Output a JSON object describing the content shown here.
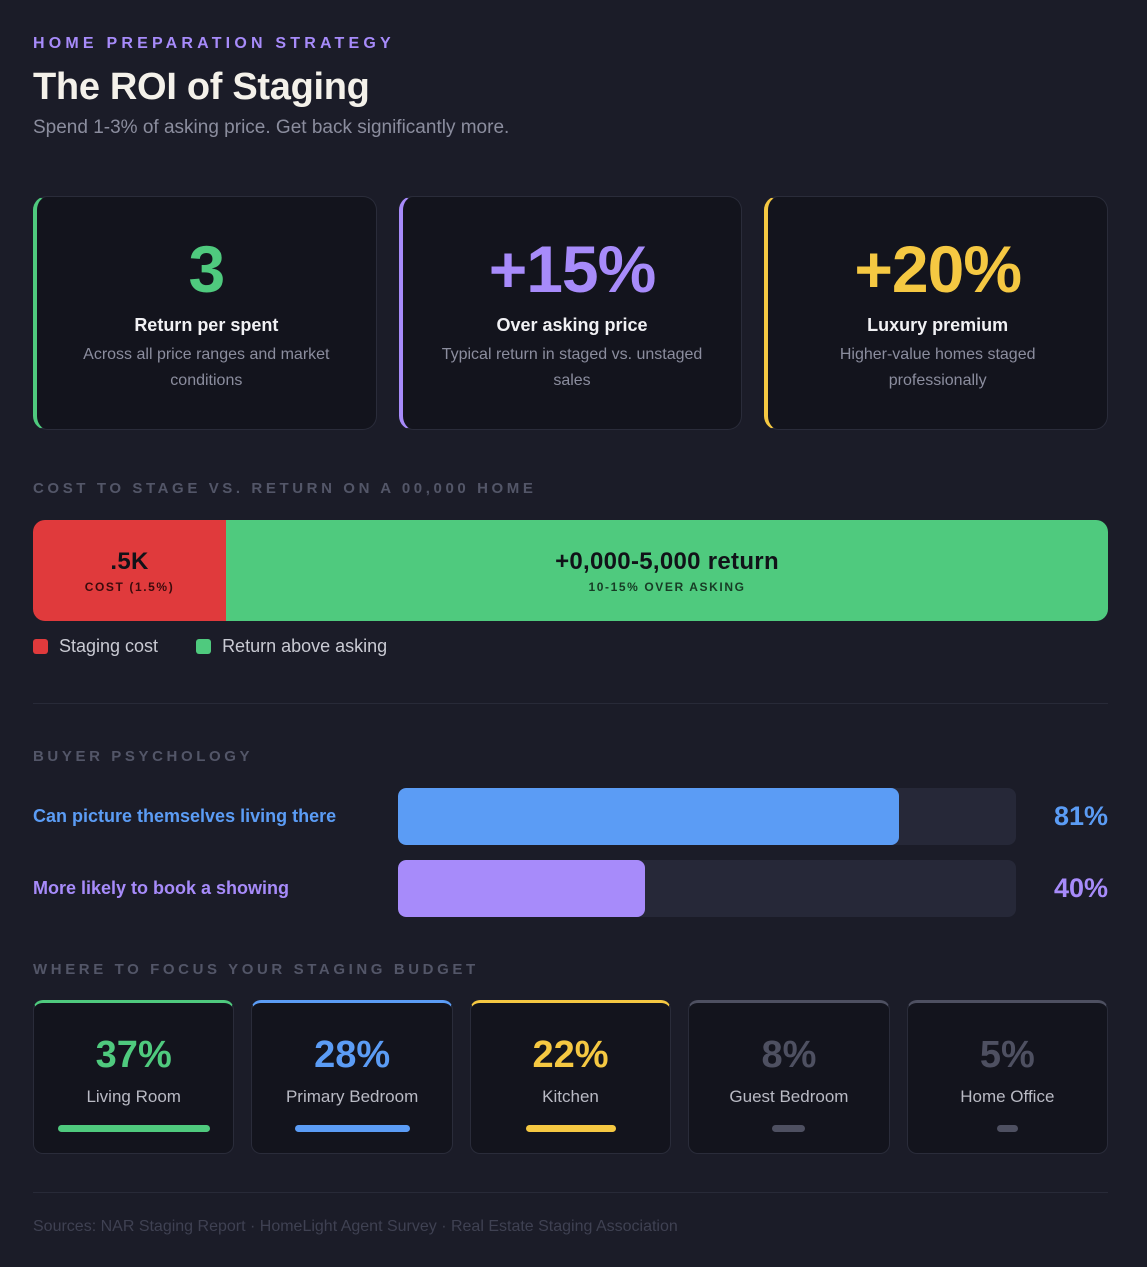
{
  "header": {
    "eyebrow": "HOME PREPARATION STRATEGY",
    "title": "The ROI of Staging",
    "subtitle": "Spend 1-3% of asking price. Get back significantly more."
  },
  "stats": [
    {
      "value": "3",
      "label": "Return per spent",
      "desc": "Across all price ranges and market conditions",
      "color": "#4fca7e"
    },
    {
      "value": "+15%",
      "label": "Over asking price",
      "desc": "Typical return in staged vs. unstaged sales",
      "color": "#a78bfa"
    },
    {
      "value": "+20%",
      "label": "Luxury premium",
      "desc": "Higher-value homes staged professionally",
      "color": "#f5c842"
    }
  ],
  "cost_section": {
    "label": "COST TO STAGE VS. RETURN ON A 00,000 HOME",
    "cost_value": ".5K",
    "cost_sub": "COST (1.5%)",
    "return_value": "+0,000-5,000 return",
    "return_sub": "10-15% OVER ASKING",
    "legend": [
      {
        "label": "Staging cost",
        "color": "#e03a3c"
      },
      {
        "label": "Return above asking",
        "color": "#4fca7e"
      }
    ]
  },
  "psychology": {
    "label": "BUYER PSYCHOLOGY",
    "rows": [
      {
        "label": "Can picture themselves living there",
        "value": "81%",
        "fraction": 0.81,
        "color": "#5b9cf5"
      },
      {
        "label": "More likely to book a showing",
        "value": "40%",
        "fraction": 0.4,
        "color": "#a78bfa"
      }
    ]
  },
  "budget": {
    "label": "WHERE TO FOCUS YOUR STAGING BUDGET",
    "items": [
      {
        "value": "37%",
        "name": "Living Room",
        "fraction": 0.37,
        "color": "#4fca7e"
      },
      {
        "value": "28%",
        "name": "Primary Bedroom",
        "fraction": 0.28,
        "color": "#5b9cf5"
      },
      {
        "value": "22%",
        "name": "Kitchen",
        "fraction": 0.22,
        "color": "#f5c842"
      },
      {
        "value": "8%",
        "name": "Guest Bedroom",
        "fraction": 0.08,
        "color": "#4e5061"
      },
      {
        "value": "5%",
        "name": "Home Office",
        "fraction": 0.05,
        "color": "#4e5061"
      }
    ]
  },
  "sources": "Sources: NAR Staging Report · HomeLight Agent Survey · Real Estate Staging Association"
}
